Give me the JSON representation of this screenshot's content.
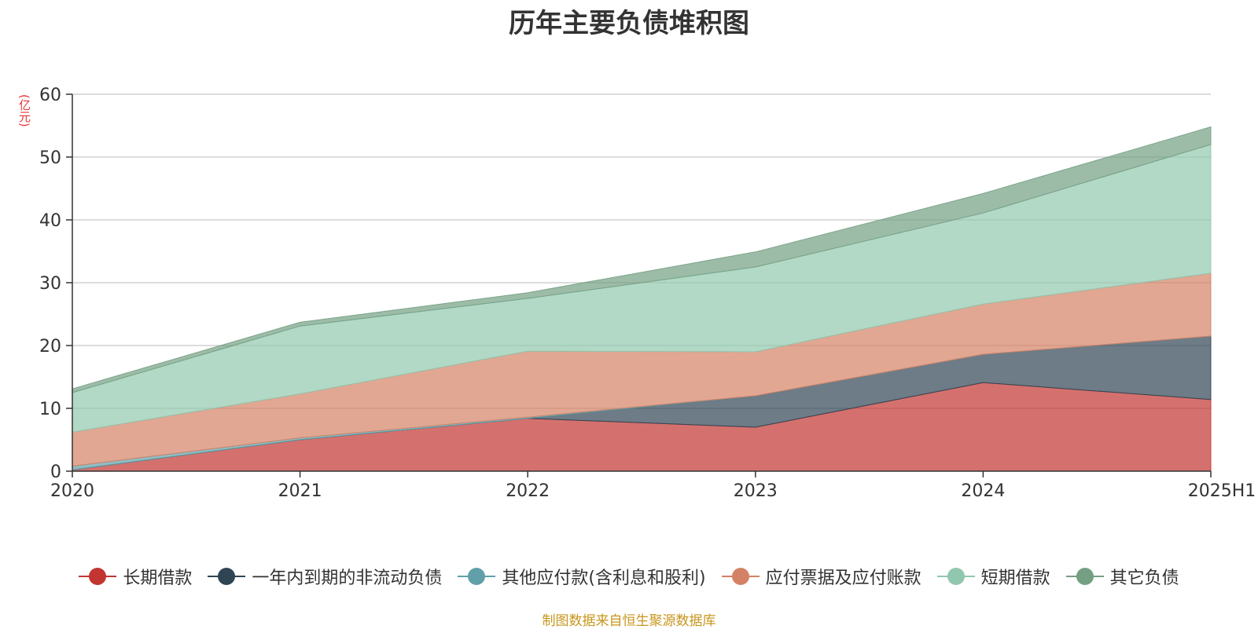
{
  "chart_data": {
    "type": "area",
    "stacked": true,
    "title": "历年主要负债堆积图",
    "unit_label": "(亿元)",
    "categories": [
      "2020",
      "2021",
      "2022",
      "2023",
      "2024",
      "2025H1"
    ],
    "ylim": [
      0,
      60
    ],
    "yticks": [
      0,
      10,
      20,
      30,
      40,
      50,
      60
    ],
    "grid": true,
    "legend_position": "bottom",
    "series": [
      {
        "name": "长期借款",
        "color": "#c23531",
        "values": [
          0.2,
          5.0,
          8.4,
          7.0,
          14.1,
          11.4
        ]
      },
      {
        "name": "一年内到期的非流动负债",
        "color": "#2f4554",
        "values": [
          0.0,
          0.0,
          0.0,
          5.0,
          4.5,
          10.1
        ]
      },
      {
        "name": "其他应付款(含利息和股利)",
        "color": "#61a0a8",
        "values": [
          0.6,
          0.3,
          0.2,
          0.0,
          0.0,
          0.0
        ]
      },
      {
        "name": "应付票据及应付账款",
        "color": "#d48265",
        "values": [
          5.4,
          7.0,
          10.5,
          7.0,
          8.0,
          10.0
        ]
      },
      {
        "name": "短期借款",
        "color": "#91c7ae",
        "values": [
          6.3,
          10.8,
          8.4,
          13.5,
          14.5,
          20.5
        ]
      },
      {
        "name": "其它负债",
        "color": "#749f83",
        "values": [
          0.6,
          0.6,
          0.9,
          2.4,
          3.1,
          2.8
        ]
      }
    ]
  },
  "source_note": "制图数据来自恒生聚源数据库"
}
